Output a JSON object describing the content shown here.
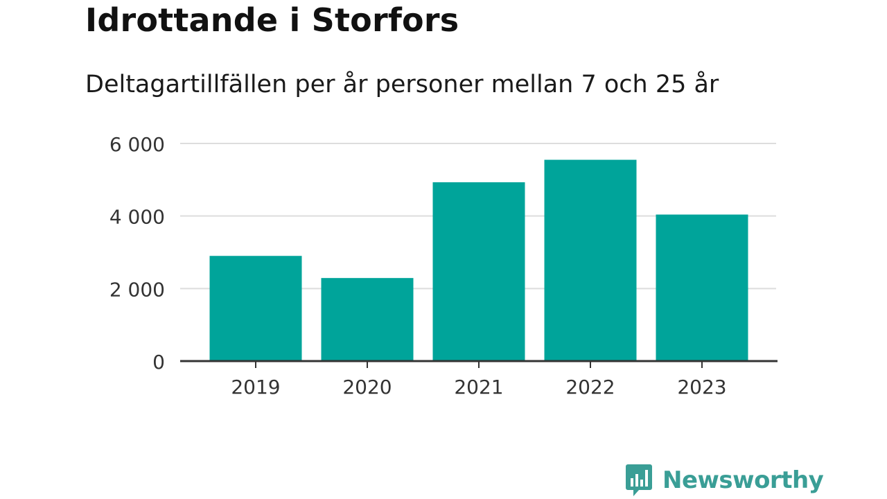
{
  "title": "Idrottande i Storfors",
  "subtitle": "Deltagartillfällen per år personer mellan 7 och 25 år",
  "brand": {
    "name": "Newsworthy",
    "icon": "bar-chart-speech-bubble-icon",
    "color": "#3a9e96"
  },
  "chart_data": {
    "type": "bar",
    "categories": [
      "2019",
      "2020",
      "2021",
      "2022",
      "2023"
    ],
    "values": [
      2900,
      2290,
      4930,
      5550,
      4040
    ],
    "ylim": [
      0,
      6000
    ],
    "yticks": [
      0,
      2000,
      4000,
      6000
    ],
    "ytick_labels": [
      "0",
      "2 000",
      "4 000",
      "6 000"
    ],
    "xlabel": "",
    "ylabel": "",
    "grid": true,
    "bar_color": "#00a49a",
    "grid_color": "#dddddd",
    "axis_color": "#333333"
  }
}
